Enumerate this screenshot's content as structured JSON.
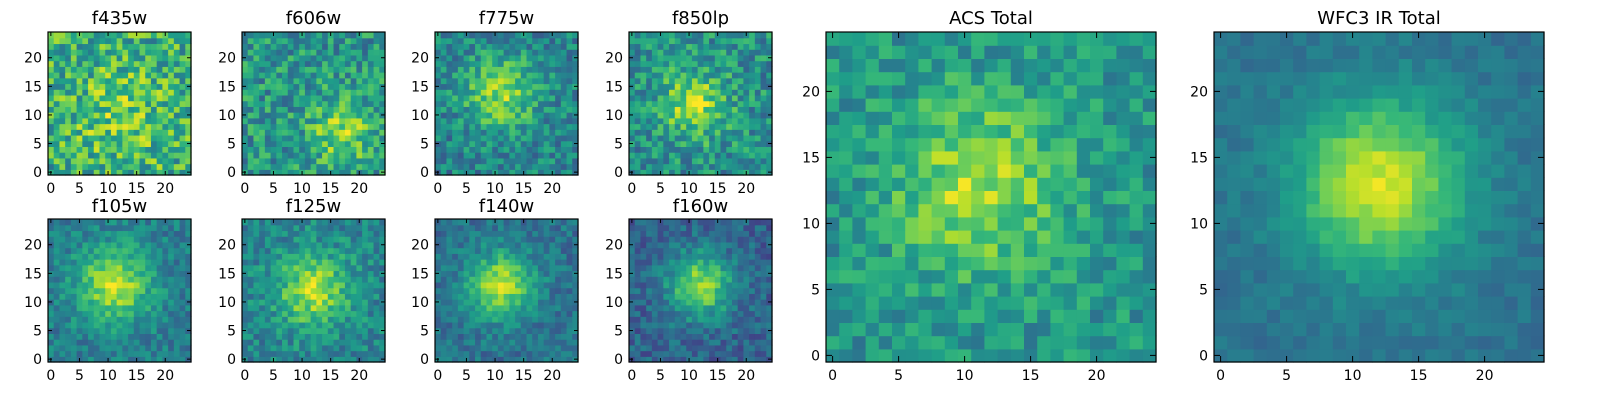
{
  "figure": {
    "background": "#ffffff",
    "colormap": "viridis",
    "colormap_stops": [
      "#440154",
      "#482878",
      "#3e4989",
      "#31688e",
      "#26828e",
      "#1f9e89",
      "#35b779",
      "#6ece58",
      "#b5de2b",
      "#fde725"
    ]
  },
  "chart_data": [
    {
      "type": "heatmap",
      "title": "f435w",
      "grid_size": 25,
      "x_ticks": [
        "0",
        "5",
        "10",
        "15",
        "20"
      ],
      "y_ticks": [
        "0",
        "5",
        "10",
        "15",
        "20"
      ],
      "grid": false,
      "legend": "none",
      "peak_intensity": 0.15,
      "peak_center": [
        12,
        10
      ],
      "peak_width": 6,
      "noise": 0.5,
      "base_level": 0.62,
      "seed": 11
    },
    {
      "type": "heatmap",
      "title": "f606w",
      "grid_size": 25,
      "x_ticks": [
        "0",
        "5",
        "10",
        "15",
        "20"
      ],
      "y_ticks": [
        "0",
        "5",
        "10",
        "15",
        "20"
      ],
      "grid": false,
      "legend": "none",
      "peak_intensity": 0.3,
      "peak_center": [
        17,
        7
      ],
      "peak_width": 4,
      "noise": 0.42,
      "base_level": 0.52,
      "seed": 23
    },
    {
      "type": "heatmap",
      "title": "f775w",
      "grid_size": 25,
      "x_ticks": [
        "0",
        "5",
        "10",
        "15",
        "20"
      ],
      "y_ticks": [
        "0",
        "5",
        "10",
        "15",
        "20"
      ],
      "grid": false,
      "legend": "none",
      "peak_intensity": 0.38,
      "peak_center": [
        11,
        14
      ],
      "peak_width": 4.5,
      "noise": 0.36,
      "base_level": 0.45,
      "seed": 37
    },
    {
      "type": "heatmap",
      "title": "f850lp",
      "grid_size": 25,
      "x_ticks": [
        "0",
        "5",
        "10",
        "15",
        "20"
      ],
      "y_ticks": [
        "0",
        "5",
        "10",
        "15",
        "20"
      ],
      "grid": false,
      "legend": "none",
      "peak_intensity": 0.38,
      "peak_center": [
        11,
        12
      ],
      "peak_width": 4,
      "noise": 0.4,
      "base_level": 0.5,
      "seed": 41
    },
    {
      "type": "heatmap",
      "title": "f105w",
      "grid_size": 25,
      "x_ticks": [
        "0",
        "5",
        "10",
        "15",
        "20"
      ],
      "y_ticks": [
        "0",
        "5",
        "10",
        "15",
        "20"
      ],
      "grid": false,
      "legend": "none",
      "peak_intensity": 0.48,
      "peak_center": [
        11,
        13
      ],
      "peak_width": 4.5,
      "noise": 0.26,
      "base_level": 0.42,
      "seed": 53
    },
    {
      "type": "heatmap",
      "title": "f125w",
      "grid_size": 25,
      "x_ticks": [
        "0",
        "5",
        "10",
        "15",
        "20"
      ],
      "y_ticks": [
        "0",
        "5",
        "10",
        "15",
        "20"
      ],
      "grid": false,
      "legend": "none",
      "peak_intensity": 0.42,
      "peak_center": [
        12,
        12
      ],
      "peak_width": 4.5,
      "noise": 0.3,
      "base_level": 0.45,
      "seed": 67
    },
    {
      "type": "heatmap",
      "title": "f140w",
      "grid_size": 25,
      "x_ticks": [
        "0",
        "5",
        "10",
        "15",
        "20"
      ],
      "y_ticks": [
        "0",
        "5",
        "10",
        "15",
        "20"
      ],
      "grid": false,
      "legend": "none",
      "peak_intensity": 0.5,
      "peak_center": [
        11,
        13
      ],
      "peak_width": 4,
      "noise": 0.24,
      "base_level": 0.38,
      "seed": 79
    },
    {
      "type": "heatmap",
      "title": "f160w",
      "grid_size": 25,
      "x_ticks": [
        "0",
        "5",
        "10",
        "15",
        "20"
      ],
      "y_ticks": [
        "0",
        "5",
        "10",
        "15",
        "20"
      ],
      "grid": false,
      "legend": "none",
      "peak_intensity": 0.52,
      "peak_center": [
        12,
        13
      ],
      "peak_width": 4,
      "noise": 0.25,
      "base_level": 0.32,
      "seed": 83
    },
    {
      "type": "heatmap",
      "title": "ACS Total",
      "grid_size": 25,
      "x_ticks": [
        "0",
        "5",
        "10",
        "15",
        "20"
      ],
      "y_ticks": [
        "0",
        "5",
        "10",
        "15",
        "20"
      ],
      "grid": false,
      "legend": "none",
      "peak_intensity": 0.35,
      "peak_center": [
        11,
        13
      ],
      "peak_width": 4.5,
      "noise": 0.3,
      "base_level": 0.52,
      "seed": 97
    },
    {
      "type": "heatmap",
      "title": "WFC3 IR Total",
      "grid_size": 25,
      "x_ticks": [
        "0",
        "5",
        "10",
        "15",
        "20"
      ],
      "y_ticks": [
        "0",
        "5",
        "10",
        "15",
        "20"
      ],
      "grid": false,
      "legend": "none",
      "peak_intensity": 0.55,
      "peak_center": [
        12,
        13
      ],
      "peak_width": 4.5,
      "noise": 0.12,
      "base_level": 0.38,
      "seed": 101
    }
  ]
}
